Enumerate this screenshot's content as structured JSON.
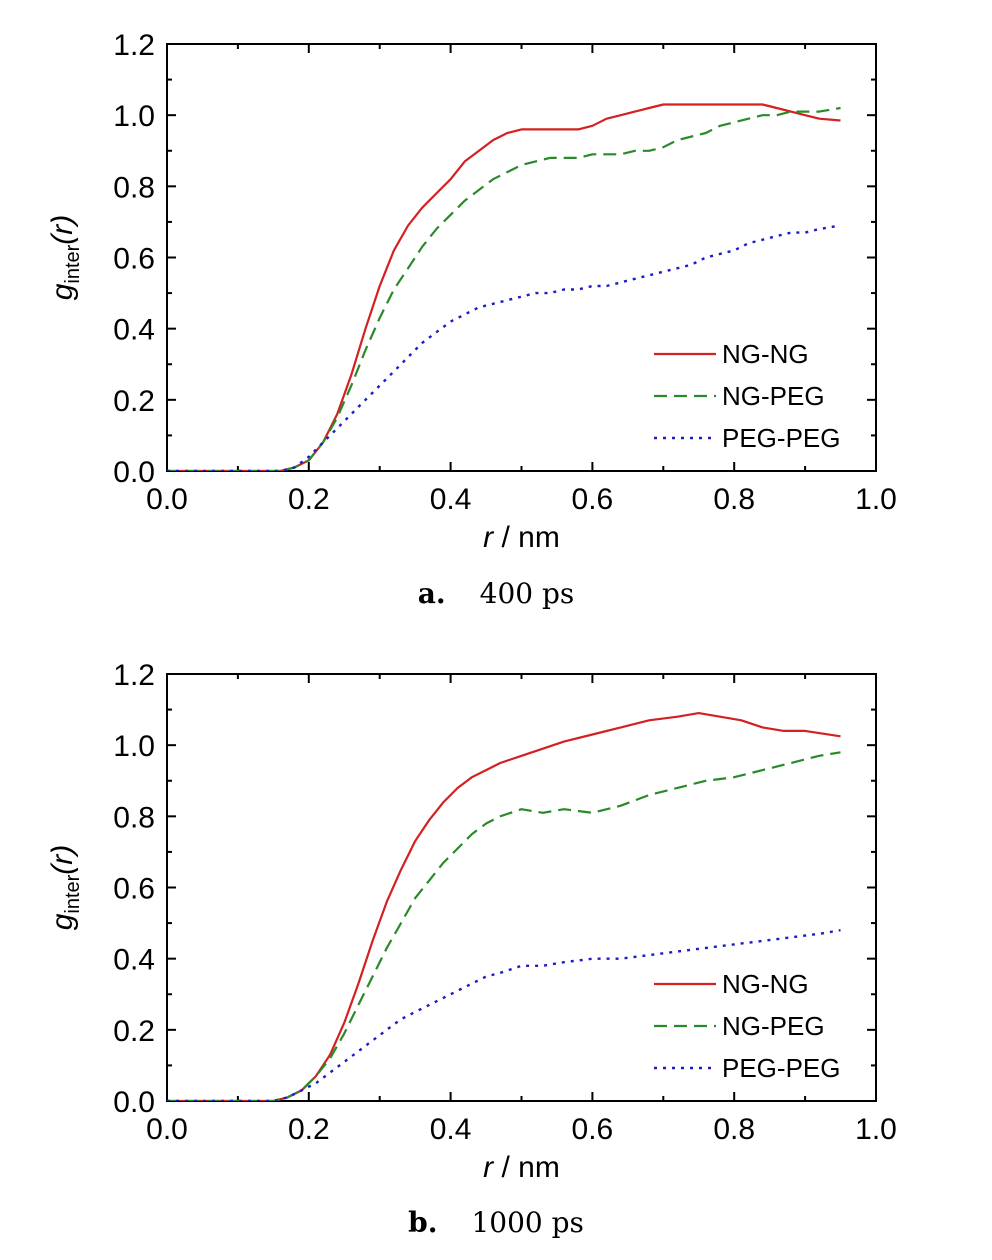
{
  "chart_data": [
    {
      "type": "line",
      "panel_label": "a.",
      "caption": "400 ps",
      "xlabel_italic": "r",
      "xlabel_rest": " / nm",
      "ylabel_main": "g",
      "ylabel_sub": "inter",
      "ylabel_tail": "(r)",
      "xlim": [
        0,
        1.0
      ],
      "ylim": [
        0,
        1.2
      ],
      "xticks": [
        "0.0",
        "0.2",
        "0.4",
        "0.6",
        "0.8",
        "1.0"
      ],
      "yticks": [
        "0.0",
        "0.2",
        "0.4",
        "0.6",
        "0.8",
        "1.0",
        "1.2"
      ],
      "legend_position": "lower-right",
      "series": [
        {
          "name": "NG-NG",
          "color": "#d42020",
          "style": "solid",
          "x": [
            0,
            0.16,
            0.18,
            0.2,
            0.22,
            0.24,
            0.26,
            0.28,
            0.3,
            0.32,
            0.34,
            0.36,
            0.38,
            0.4,
            0.42,
            0.44,
            0.46,
            0.48,
            0.5,
            0.52,
            0.54,
            0.56,
            0.58,
            0.6,
            0.62,
            0.64,
            0.66,
            0.68,
            0.7,
            0.72,
            0.74,
            0.76,
            0.78,
            0.8,
            0.82,
            0.84,
            0.86,
            0.88,
            0.9,
            0.92,
            0.95
          ],
          "y": [
            0,
            0,
            0.01,
            0.03,
            0.08,
            0.16,
            0.27,
            0.4,
            0.52,
            0.62,
            0.69,
            0.74,
            0.78,
            0.82,
            0.87,
            0.9,
            0.93,
            0.95,
            0.96,
            0.96,
            0.96,
            0.96,
            0.96,
            0.97,
            0.99,
            1.0,
            1.01,
            1.02,
            1.03,
            1.03,
            1.03,
            1.03,
            1.03,
            1.03,
            1.03,
            1.03,
            1.02,
            1.01,
            1.0,
            0.99,
            0.985
          ]
        },
        {
          "name": "NG-PEG",
          "color": "#2a8a2a",
          "style": "dashed",
          "x": [
            0,
            0.16,
            0.18,
            0.2,
            0.22,
            0.24,
            0.26,
            0.28,
            0.3,
            0.32,
            0.34,
            0.36,
            0.38,
            0.4,
            0.42,
            0.44,
            0.46,
            0.48,
            0.5,
            0.52,
            0.54,
            0.56,
            0.58,
            0.6,
            0.62,
            0.64,
            0.66,
            0.68,
            0.7,
            0.72,
            0.74,
            0.76,
            0.78,
            0.8,
            0.82,
            0.84,
            0.86,
            0.88,
            0.9,
            0.92,
            0.95
          ],
          "y": [
            0,
            0,
            0.01,
            0.03,
            0.08,
            0.15,
            0.24,
            0.34,
            0.43,
            0.51,
            0.57,
            0.63,
            0.68,
            0.72,
            0.76,
            0.79,
            0.82,
            0.84,
            0.86,
            0.87,
            0.88,
            0.88,
            0.88,
            0.89,
            0.89,
            0.89,
            0.9,
            0.9,
            0.91,
            0.93,
            0.94,
            0.95,
            0.97,
            0.98,
            0.99,
            1.0,
            1.0,
            1.01,
            1.01,
            1.01,
            1.02
          ]
        },
        {
          "name": "PEG-PEG",
          "color": "#1c1cc8",
          "style": "dotted",
          "x": [
            0,
            0.16,
            0.18,
            0.2,
            0.22,
            0.24,
            0.26,
            0.28,
            0.3,
            0.32,
            0.34,
            0.36,
            0.38,
            0.4,
            0.42,
            0.44,
            0.46,
            0.48,
            0.5,
            0.52,
            0.54,
            0.56,
            0.58,
            0.6,
            0.62,
            0.64,
            0.66,
            0.68,
            0.7,
            0.72,
            0.74,
            0.76,
            0.78,
            0.8,
            0.82,
            0.84,
            0.86,
            0.88,
            0.9,
            0.92,
            0.95
          ],
          "y": [
            0,
            0,
            0.01,
            0.04,
            0.08,
            0.12,
            0.16,
            0.2,
            0.24,
            0.28,
            0.32,
            0.36,
            0.39,
            0.42,
            0.44,
            0.46,
            0.47,
            0.48,
            0.49,
            0.5,
            0.5,
            0.51,
            0.51,
            0.52,
            0.52,
            0.53,
            0.54,
            0.55,
            0.56,
            0.57,
            0.58,
            0.6,
            0.61,
            0.62,
            0.64,
            0.65,
            0.66,
            0.67,
            0.67,
            0.68,
            0.69
          ]
        }
      ]
    },
    {
      "type": "line",
      "panel_label": "b.",
      "caption": "1000 ps",
      "xlabel_italic": "r",
      "xlabel_rest": " / nm",
      "ylabel_main": "g",
      "ylabel_sub": "inter",
      "ylabel_tail": "(r)",
      "xlim": [
        0,
        1.0
      ],
      "ylim": [
        0,
        1.2
      ],
      "xticks": [
        "0.0",
        "0.2",
        "0.4",
        "0.6",
        "0.8",
        "1.0"
      ],
      "yticks": [
        "0.0",
        "0.2",
        "0.4",
        "0.6",
        "0.8",
        "1.0",
        "1.2"
      ],
      "legend_position": "lower-right",
      "series": [
        {
          "name": "NG-NG",
          "color": "#d42020",
          "style": "solid",
          "x": [
            0,
            0.15,
            0.17,
            0.19,
            0.21,
            0.23,
            0.25,
            0.27,
            0.29,
            0.31,
            0.33,
            0.35,
            0.37,
            0.39,
            0.41,
            0.43,
            0.45,
            0.47,
            0.5,
            0.53,
            0.56,
            0.6,
            0.64,
            0.68,
            0.72,
            0.75,
            0.78,
            0.81,
            0.84,
            0.87,
            0.9,
            0.95
          ],
          "y": [
            0,
            0,
            0.01,
            0.03,
            0.07,
            0.13,
            0.22,
            0.33,
            0.45,
            0.56,
            0.65,
            0.73,
            0.79,
            0.84,
            0.88,
            0.91,
            0.93,
            0.95,
            0.97,
            0.99,
            1.01,
            1.03,
            1.05,
            1.07,
            1.08,
            1.09,
            1.08,
            1.07,
            1.05,
            1.04,
            1.04,
            1.025
          ]
        },
        {
          "name": "NG-PEG",
          "color": "#2a8a2a",
          "style": "dashed",
          "x": [
            0,
            0.15,
            0.17,
            0.19,
            0.21,
            0.23,
            0.25,
            0.27,
            0.29,
            0.31,
            0.33,
            0.35,
            0.37,
            0.39,
            0.41,
            0.43,
            0.45,
            0.47,
            0.5,
            0.53,
            0.56,
            0.6,
            0.64,
            0.68,
            0.72,
            0.76,
            0.8,
            0.84,
            0.88,
            0.92,
            0.95
          ],
          "y": [
            0,
            0,
            0.01,
            0.03,
            0.07,
            0.12,
            0.19,
            0.27,
            0.35,
            0.43,
            0.5,
            0.57,
            0.62,
            0.67,
            0.71,
            0.75,
            0.78,
            0.8,
            0.82,
            0.81,
            0.82,
            0.81,
            0.83,
            0.86,
            0.88,
            0.9,
            0.91,
            0.93,
            0.95,
            0.97,
            0.98
          ]
        },
        {
          "name": "PEG-PEG",
          "color": "#1c1cc8",
          "style": "dotted",
          "x": [
            0,
            0.15,
            0.17,
            0.19,
            0.21,
            0.23,
            0.25,
            0.27,
            0.29,
            0.31,
            0.33,
            0.35,
            0.37,
            0.39,
            0.41,
            0.43,
            0.45,
            0.47,
            0.5,
            0.53,
            0.56,
            0.6,
            0.64,
            0.68,
            0.72,
            0.76,
            0.8,
            0.84,
            0.88,
            0.92,
            0.95
          ],
          "y": [
            0,
            0,
            0.01,
            0.03,
            0.05,
            0.08,
            0.11,
            0.14,
            0.17,
            0.2,
            0.23,
            0.25,
            0.27,
            0.29,
            0.31,
            0.33,
            0.35,
            0.36,
            0.38,
            0.38,
            0.39,
            0.4,
            0.4,
            0.41,
            0.42,
            0.43,
            0.44,
            0.45,
            0.46,
            0.47,
            0.48
          ]
        }
      ]
    }
  ]
}
